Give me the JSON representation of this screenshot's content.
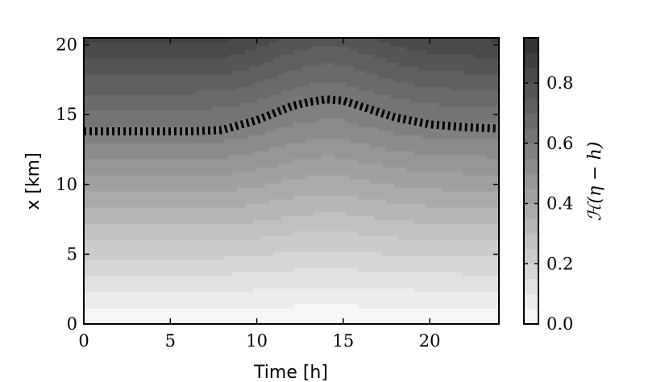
{
  "chart_data": {
    "type": "heatmap",
    "title": "",
    "xlabel": "Time [h]",
    "ylabel": "x [km]",
    "xlim": [
      0,
      24
    ],
    "ylim": [
      0,
      20.5
    ],
    "x_ticks": [
      0,
      5,
      10,
      15,
      20
    ],
    "y_ticks": [
      0,
      5,
      10,
      15,
      20
    ],
    "colorbar": {
      "label": "ℋ(η − h)",
      "range": [
        0.0,
        0.95
      ],
      "ticks": [
        0.0,
        0.2,
        0.4,
        0.6,
        0.8
      ],
      "tick_labels": [
        "0.0",
        "0.2",
        "0.4",
        "0.6",
        "0.8"
      ],
      "colormap": "Greys",
      "levels": 19
    },
    "boundary_curve": {
      "style": "dashed-black",
      "x": [
        0,
        2,
        4,
        6,
        8,
        10,
        12,
        13,
        14,
        15,
        16,
        18,
        20,
        22,
        24
      ],
      "y": [
        13.8,
        13.8,
        13.8,
        13.8,
        13.9,
        14.6,
        15.6,
        15.9,
        16.1,
        16.0,
        15.6,
        14.8,
        14.3,
        14.1,
        14.0
      ]
    },
    "grid": false
  }
}
